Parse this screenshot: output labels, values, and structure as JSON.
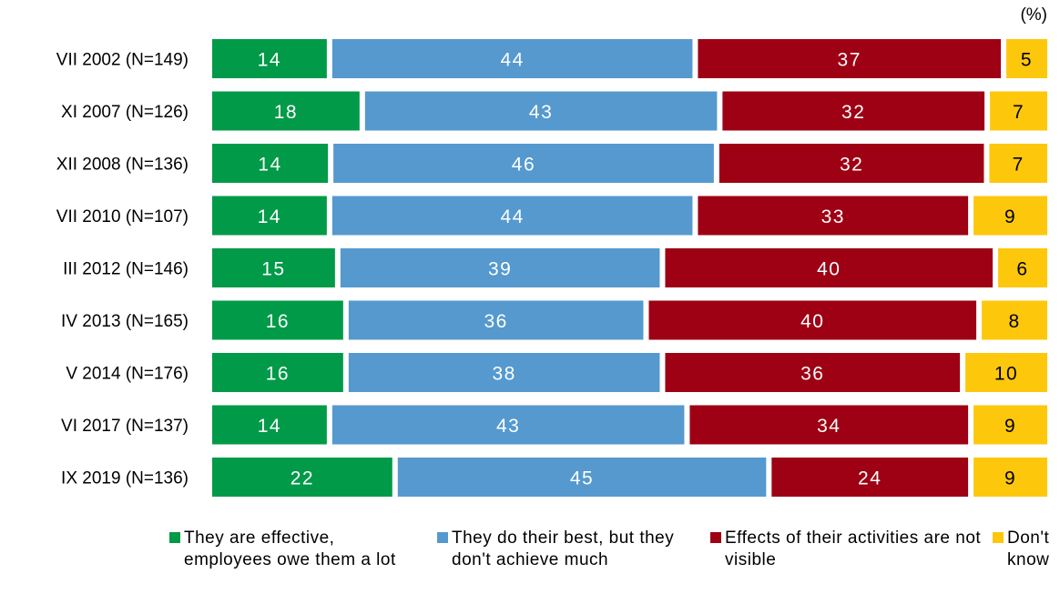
{
  "chart_data": {
    "type": "bar",
    "orientation": "horizontal",
    "stacked": true,
    "unit_label": "(%)",
    "categories": [
      "VII 2002 (N=149)",
      "XI 2007 (N=126)",
      "XII 2008 (N=136)",
      "VII 2010 (N=107)",
      "III 2012 (N=146)",
      "IV 2013 (N=165)",
      "V 2014 (N=176)",
      "VI 2017 (N=137)",
      "IX 2019 (N=136)"
    ],
    "series": [
      {
        "name": "They are effective, employees owe them a lot",
        "color": "#009a49",
        "text_color": "#ffffff",
        "values": [
          14,
          18,
          14,
          14,
          15,
          16,
          16,
          14,
          22
        ]
      },
      {
        "name": "They do their best, but they don't achieve much",
        "color": "#5599cf",
        "text_color": "#ffffff",
        "values": [
          44,
          43,
          46,
          44,
          39,
          36,
          38,
          43,
          45
        ]
      },
      {
        "name": "Effects of their activities are not visible",
        "color": "#9e0014",
        "text_color": "#ffffff",
        "values": [
          37,
          32,
          32,
          33,
          40,
          40,
          36,
          34,
          24
        ]
      },
      {
        "name": "Don't know",
        "color": "#fdc70c",
        "text_color": "#000000",
        "values": [
          5,
          7,
          7,
          9,
          6,
          8,
          10,
          9,
          9
        ]
      }
    ],
    "legend_position": "bottom",
    "grid": false
  }
}
